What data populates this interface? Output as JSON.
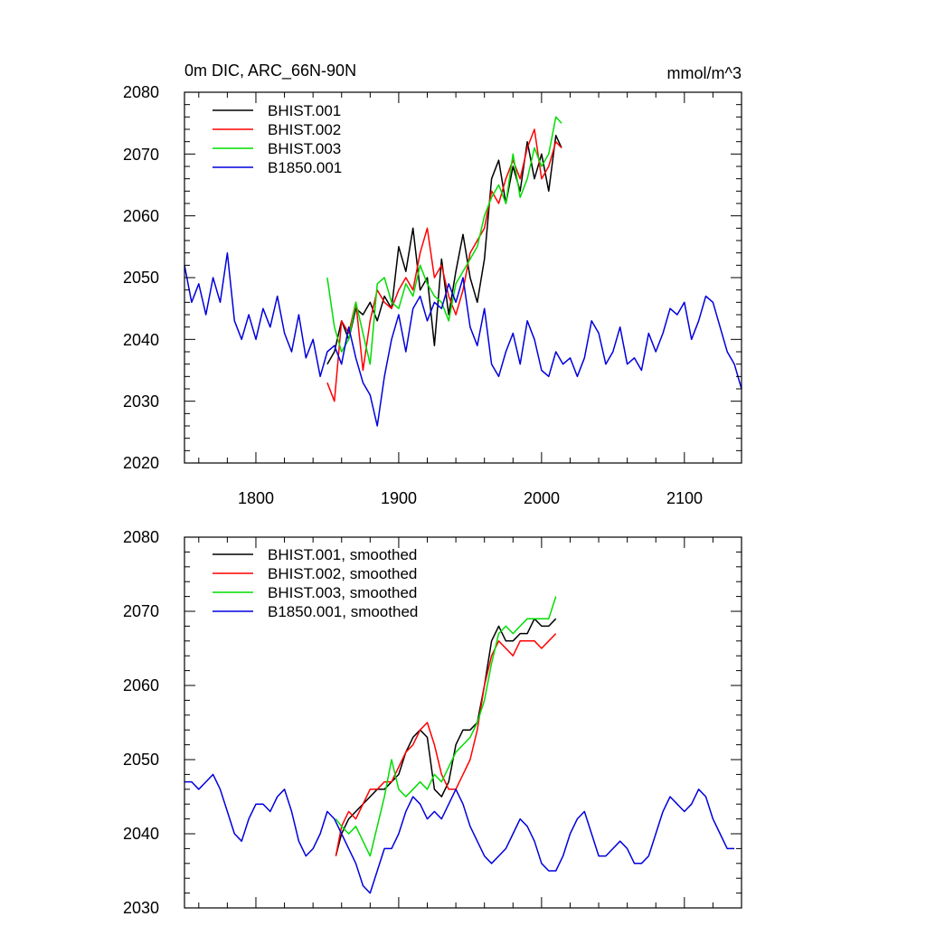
{
  "charts": [
    {
      "title_left": "0m DIC, ARC_66N-90N",
      "title_right": "mmol/m^3",
      "xtick_labels": [
        "1800",
        "1900",
        "2000",
        "2100"
      ],
      "ytick_labels": [
        "2020",
        "2030",
        "2040",
        "2050",
        "2060",
        "2070",
        "2080"
      ],
      "legend": [
        "BHIST.001",
        "BHIST.002",
        "BHIST.003",
        "B1850.001"
      ]
    },
    {
      "xtick_labels": [],
      "ytick_labels": [
        "2030",
        "2040",
        "2050",
        "2060",
        "2070",
        "2080"
      ],
      "legend": [
        "BHIST.001, smoothed",
        "BHIST.002, smoothed",
        "BHIST.003, smoothed",
        "B1850.001, smoothed"
      ]
    }
  ],
  "colors": {
    "BHIST.001": "#000000",
    "BHIST.002": "#ff0000",
    "BHIST.003": "#00dd00",
    "B1850.001": "#0000dd",
    "axis": "#000000"
  },
  "chart_data": [
    {
      "type": "line",
      "title": "0m DIC, ARC_66N-90N",
      "ylabel": "mmol/m^3",
      "xlim": [
        1750,
        2140
      ],
      "ylim": [
        2020,
        2080
      ],
      "xticks": [
        1800,
        1900,
        2000,
        2100
      ],
      "yticks": [
        2020,
        2030,
        2040,
        2050,
        2060,
        2070,
        2080
      ],
      "legend_position": "top-left",
      "series": [
        {
          "name": "BHIST.001",
          "color": "#000000",
          "x": [
            1850,
            1855,
            1860,
            1865,
            1870,
            1875,
            1880,
            1885,
            1890,
            1895,
            1900,
            1905,
            1910,
            1915,
            1920,
            1925,
            1930,
            1935,
            1940,
            1945,
            1950,
            1955,
            1960,
            1965,
            1970,
            1975,
            1980,
            1985,
            1990,
            1995,
            2000,
            2005,
            2010,
            2014
          ],
          "y": [
            2036,
            2038,
            2043,
            2040,
            2045,
            2044,
            2046,
            2043,
            2047,
            2045,
            2055,
            2051,
            2058,
            2048,
            2050,
            2039,
            2053,
            2044,
            2051,
            2057,
            2050,
            2046,
            2053,
            2066,
            2069,
            2062,
            2068,
            2064,
            2072,
            2066,
            2070,
            2064,
            2073,
            2071
          ]
        },
        {
          "name": "BHIST.002",
          "color": "#ff0000",
          "x": [
            1850,
            1855,
            1860,
            1865,
            1870,
            1875,
            1880,
            1885,
            1890,
            1895,
            1900,
            1905,
            1910,
            1915,
            1920,
            1925,
            1930,
            1935,
            1940,
            1945,
            1950,
            1955,
            1960,
            1965,
            1970,
            1975,
            1980,
            1985,
            1990,
            1995,
            2000,
            2005,
            2010,
            2014
          ],
          "y": [
            2033,
            2030,
            2043,
            2041,
            2046,
            2035,
            2043,
            2048,
            2046,
            2045,
            2048,
            2050,
            2048,
            2054,
            2058,
            2050,
            2052,
            2047,
            2044,
            2048,
            2054,
            2056,
            2058,
            2064,
            2062,
            2066,
            2069,
            2066,
            2071,
            2074,
            2066,
            2068,
            2072,
            2071
          ]
        },
        {
          "name": "BHIST.003",
          "color": "#00dd00",
          "x": [
            1850,
            1855,
            1860,
            1865,
            1870,
            1875,
            1880,
            1885,
            1890,
            1895,
            1900,
            1905,
            1910,
            1915,
            1920,
            1925,
            1930,
            1935,
            1940,
            1945,
            1950,
            1955,
            1960,
            1965,
            1970,
            1975,
            1980,
            1985,
            1990,
            1995,
            2000,
            2005,
            2010,
            2014
          ],
          "y": [
            2050,
            2042,
            2038,
            2040,
            2046,
            2041,
            2036,
            2049,
            2050,
            2046,
            2045,
            2049,
            2047,
            2052,
            2049,
            2047,
            2046,
            2043,
            2049,
            2051,
            2053,
            2055,
            2060,
            2063,
            2065,
            2062,
            2070,
            2063,
            2066,
            2071,
            2068,
            2070,
            2076,
            2075
          ]
        },
        {
          "name": "B1850.001",
          "color": "#0000dd",
          "x": [
            1750,
            1755,
            1760,
            1765,
            1770,
            1775,
            1780,
            1785,
            1790,
            1795,
            1800,
            1805,
            1810,
            1815,
            1820,
            1825,
            1830,
            1835,
            1840,
            1845,
            1850,
            1855,
            1860,
            1865,
            1870,
            1875,
            1880,
            1885,
            1890,
            1895,
            1900,
            1905,
            1910,
            1915,
            1920,
            1925,
            1930,
            1935,
            1940,
            1945,
            1950,
            1955,
            1960,
            1965,
            1970,
            1975,
            1980,
            1985,
            1990,
            1995,
            2000,
            2005,
            2010,
            2015,
            2020,
            2025,
            2030,
            2035,
            2040,
            2045,
            2050,
            2055,
            2060,
            2065,
            2070,
            2075,
            2080,
            2085,
            2090,
            2095,
            2100,
            2105,
            2110,
            2115,
            2120,
            2125,
            2130,
            2135,
            2140
          ],
          "y": [
            2052,
            2046,
            2049,
            2044,
            2050,
            2046,
            2054,
            2043,
            2040,
            2044,
            2040,
            2045,
            2042,
            2047,
            2041,
            2038,
            2044,
            2037,
            2040,
            2034,
            2038,
            2039,
            2036,
            2042,
            2037,
            2033,
            2031,
            2026,
            2034,
            2040,
            2044,
            2038,
            2045,
            2047,
            2043,
            2046,
            2045,
            2049,
            2046,
            2050,
            2042,
            2039,
            2045,
            2036,
            2034,
            2038,
            2041,
            2036,
            2043,
            2040,
            2035,
            2034,
            2038,
            2036,
            2037,
            2034,
            2037,
            2043,
            2041,
            2036,
            2038,
            2042,
            2036,
            2037,
            2035,
            2041,
            2038,
            2041,
            2045,
            2044,
            2046,
            2040,
            2043,
            2047,
            2046,
            2042,
            2038,
            2036,
            2032
          ]
        }
      ]
    },
    {
      "type": "line",
      "title": "",
      "xlim": [
        1750,
        2140
      ],
      "ylim": [
        2030,
        2080
      ],
      "xticks": [
        1800,
        1900,
        2000,
        2100
      ],
      "yticks": [
        2030,
        2040,
        2050,
        2060,
        2070,
        2080
      ],
      "legend_position": "top-left",
      "series": [
        {
          "name": "BHIST.001, smoothed",
          "color": "#000000",
          "x": [
            1856,
            1860,
            1865,
            1870,
            1875,
            1880,
            1885,
            1890,
            1895,
            1900,
            1905,
            1910,
            1915,
            1920,
            1925,
            1930,
            1935,
            1940,
            1945,
            1950,
            1955,
            1960,
            1965,
            1970,
            1975,
            1980,
            1985,
            1990,
            1995,
            2000,
            2005,
            2010
          ],
          "y": [
            2037,
            2040,
            2042,
            2043,
            2044,
            2045,
            2046,
            2046,
            2047,
            2048,
            2051,
            2053,
            2054,
            2053,
            2046,
            2045,
            2047,
            2052,
            2054,
            2054,
            2055,
            2060,
            2066,
            2068,
            2066,
            2066,
            2067,
            2067,
            2069,
            2068,
            2068,
            2069
          ]
        },
        {
          "name": "BHIST.002, smoothed",
          "color": "#ff0000",
          "x": [
            1856,
            1860,
            1865,
            1870,
            1875,
            1880,
            1885,
            1890,
            1895,
            1900,
            1905,
            1910,
            1915,
            1920,
            1925,
            1930,
            1935,
            1940,
            1945,
            1950,
            1955,
            1960,
            1965,
            1970,
            1975,
            1980,
            1985,
            1990,
            1995,
            2000,
            2005,
            2010
          ],
          "y": [
            2037,
            2041,
            2043,
            2042,
            2044,
            2046,
            2046,
            2047,
            2047,
            2049,
            2051,
            2052,
            2054,
            2055,
            2052,
            2048,
            2046,
            2046,
            2048,
            2050,
            2054,
            2060,
            2064,
            2066,
            2065,
            2064,
            2066,
            2066,
            2066,
            2065,
            2066,
            2067
          ]
        },
        {
          "name": "BHIST.003, smoothed",
          "color": "#00dd00",
          "x": [
            1856,
            1860,
            1865,
            1870,
            1875,
            1880,
            1885,
            1890,
            1895,
            1900,
            1905,
            1910,
            1915,
            1920,
            1925,
            1930,
            1935,
            1940,
            1945,
            1950,
            1955,
            1960,
            1965,
            1970,
            1975,
            1980,
            1985,
            1990,
            1995,
            2000,
            2005,
            2010
          ],
          "y": [
            2042,
            2041,
            2040,
            2041,
            2039,
            2037,
            2041,
            2045,
            2050,
            2046,
            2045,
            2046,
            2047,
            2046,
            2048,
            2047,
            2049,
            2051,
            2052,
            2053,
            2055,
            2058,
            2063,
            2067,
            2068,
            2067,
            2068,
            2069,
            2069,
            2069,
            2069,
            2072
          ]
        },
        {
          "name": "B1850.001, smoothed",
          "color": "#0000dd",
          "x": [
            1750,
            1755,
            1760,
            1765,
            1770,
            1775,
            1780,
            1785,
            1790,
            1795,
            1800,
            1805,
            1810,
            1815,
            1820,
            1825,
            1830,
            1835,
            1840,
            1845,
            1850,
            1855,
            1860,
            1865,
            1870,
            1875,
            1880,
            1885,
            1890,
            1895,
            1900,
            1905,
            1910,
            1915,
            1920,
            1925,
            1930,
            1935,
            1940,
            1945,
            1950,
            1955,
            1960,
            1965,
            1970,
            1975,
            1980,
            1985,
            1990,
            1995,
            2000,
            2005,
            2010,
            2015,
            2020,
            2025,
            2030,
            2035,
            2040,
            2045,
            2050,
            2055,
            2060,
            2065,
            2070,
            2075,
            2080,
            2085,
            2090,
            2095,
            2100,
            2105,
            2110,
            2115,
            2120,
            2125,
            2130,
            2135
          ],
          "y": [
            2047,
            2047,
            2046,
            2047,
            2048,
            2046,
            2043,
            2040,
            2039,
            2042,
            2044,
            2044,
            2043,
            2045,
            2046,
            2043,
            2039,
            2037,
            2038,
            2040,
            2043,
            2042,
            2040,
            2038,
            2036,
            2033,
            2032,
            2035,
            2038,
            2038,
            2040,
            2043,
            2045,
            2044,
            2042,
            2043,
            2042,
            2044,
            2046,
            2044,
            2041,
            2039,
            2037,
            2036,
            2037,
            2038,
            2040,
            2042,
            2041,
            2039,
            2036,
            2035,
            2035,
            2037,
            2040,
            2042,
            2043,
            2040,
            2037,
            2037,
            2038,
            2039,
            2038,
            2036,
            2036,
            2037,
            2040,
            2043,
            2045,
            2044,
            2043,
            2044,
            2046,
            2045,
            2042,
            2040,
            2038,
            2038
          ]
        }
      ]
    }
  ]
}
